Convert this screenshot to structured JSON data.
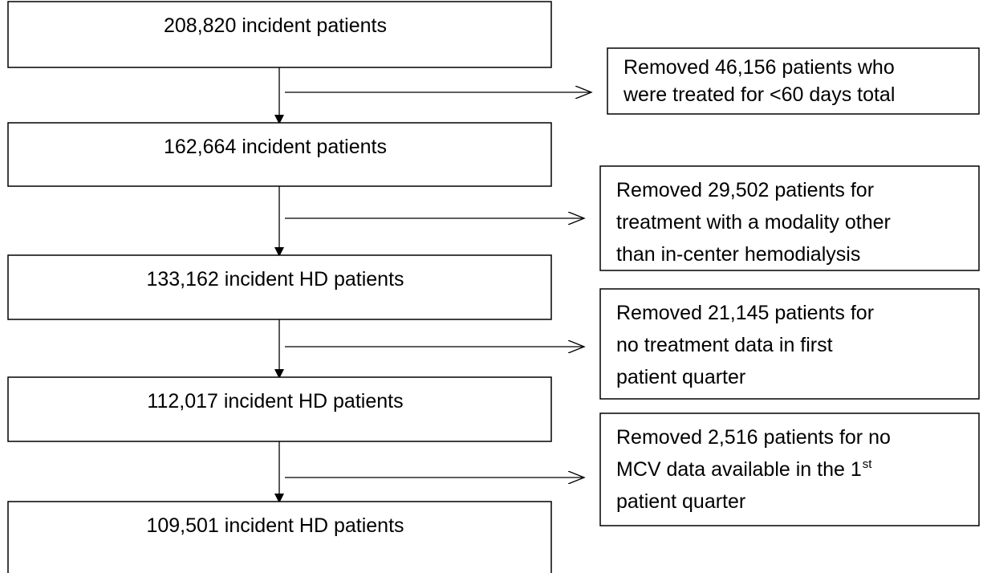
{
  "nodes": [
    {
      "label": "208,820 incident patients"
    },
    {
      "label": "162,664 incident patients"
    },
    {
      "label": "133,162 incident HD patients"
    },
    {
      "label": "112,017 incident HD patients"
    },
    {
      "label": "109,501 incident HD patients"
    }
  ],
  "exclusions": [
    {
      "lines": [
        "Removed 46,156 patients who",
        "were treated for <60 days total"
      ]
    },
    {
      "lines": [
        "Removed 29,502 patients for",
        "treatment with a modality other",
        "than in-center hemodialysis"
      ]
    },
    {
      "lines": [
        "Removed 21,145 patients for",
        "no treatment data in first",
        "patient quarter"
      ]
    },
    {
      "lines": [
        "Removed 2,516 patients for no",
        "MCV data available in the 1",
        "patient quarter"
      ],
      "superscript": "st"
    }
  ]
}
